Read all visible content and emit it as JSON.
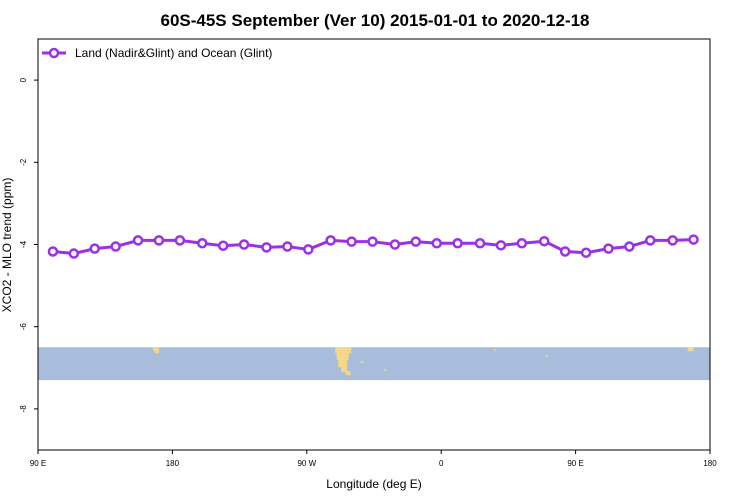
{
  "chart_data": {
    "type": "line",
    "title": "60S-45S September (Ver 10)   2015-01-01 to 2020-12-18",
    "xlabel": "Longitude (deg E)",
    "ylabel": "XCO2 - MLO trend (ppm)",
    "xlim": [
      90,
      540
    ],
    "ylim": [
      -9,
      1
    ],
    "x_tick_values": [
      90,
      180,
      270,
      360,
      450,
      540
    ],
    "x_tick_labels": [
      "90 E",
      "180",
      "90 W",
      "0",
      "90 E",
      "180"
    ],
    "y_tick_values": [
      0,
      -2,
      -4,
      -6,
      -8
    ],
    "y_tick_labels": [
      "0",
      "-2",
      "-4",
      "-6",
      "-8"
    ],
    "grid": false,
    "legend_position": "top-left",
    "series": [
      {
        "name": "Land (Nadir&Glint) and Ocean (Glint)",
        "color": "#9b30e6",
        "x": [
          100,
          114,
          128,
          142,
          157,
          171,
          185,
          200,
          214,
          228,
          243,
          257,
          271,
          286,
          300,
          314,
          329,
          343,
          357,
          371,
          386,
          400,
          414,
          429,
          443,
          457,
          472,
          486,
          500,
          515,
          529
        ],
        "y": [
          -4.17,
          -4.22,
          -4.1,
          -4.05,
          -3.9,
          -3.9,
          -3.9,
          -3.97,
          -4.03,
          -4.0,
          -4.07,
          -4.05,
          -4.12,
          -3.9,
          -3.93,
          -3.93,
          -4.0,
          -3.93,
          -3.97,
          -3.97,
          -3.97,
          -4.02,
          -3.97,
          -3.92,
          -4.17,
          -4.2,
          -4.1,
          -4.05,
          -3.9,
          -3.9,
          -3.88
        ]
      }
    ],
    "map_strip": {
      "y_range": [
        -7.3,
        -6.5
      ],
      "ocean_color": "#a8bcdc",
      "land_color": "#f5d78a"
    }
  }
}
